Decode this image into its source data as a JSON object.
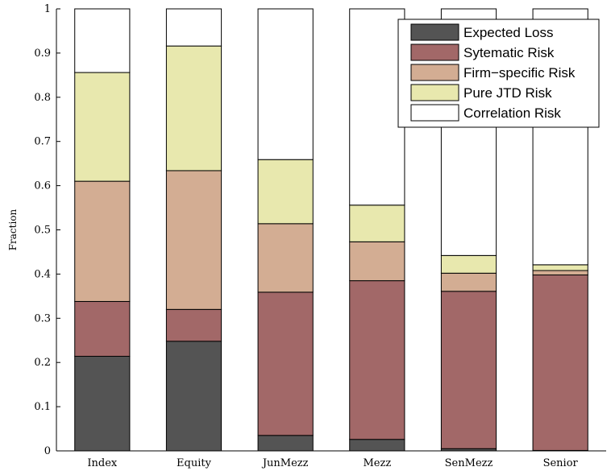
{
  "chart_data": {
    "type": "bar",
    "stacked": true,
    "categories": [
      "Index",
      "Equity",
      "JunMezz",
      "Mezz",
      "SenMezz",
      "Senior"
    ],
    "series": [
      {
        "name": "Expected Loss",
        "color": "#545454",
        "values": [
          0.214,
          0.248,
          0.035,
          0.026,
          0.005,
          0.001
        ]
      },
      {
        "name": "Sytematic Risk",
        "color": "#a26868",
        "values": [
          0.124,
          0.072,
          0.324,
          0.359,
          0.356,
          0.397
        ]
      },
      {
        "name": "Firm−specific Risk",
        "color": "#d3ad93",
        "values": [
          0.272,
          0.314,
          0.155,
          0.088,
          0.041,
          0.01
        ]
      },
      {
        "name": "Pure JTD Risk",
        "color": "#e8e8ae",
        "values": [
          0.246,
          0.282,
          0.145,
          0.083,
          0.04,
          0.013
        ]
      },
      {
        "name": "Correlation Risk",
        "color": "#ffffff",
        "values": [
          0.144,
          0.084,
          0.341,
          0.444,
          0.558,
          0.579
        ]
      }
    ],
    "ylabel": "Fraction",
    "xlabel": "",
    "ylim": [
      0,
      1
    ],
    "yticks": [
      "0",
      "0.1",
      "0.2",
      "0.3",
      "0.4",
      "0.5",
      "0.6",
      "0.7",
      "0.8",
      "0.9",
      "1"
    ],
    "legend_position": "top-right",
    "grid": false
  }
}
